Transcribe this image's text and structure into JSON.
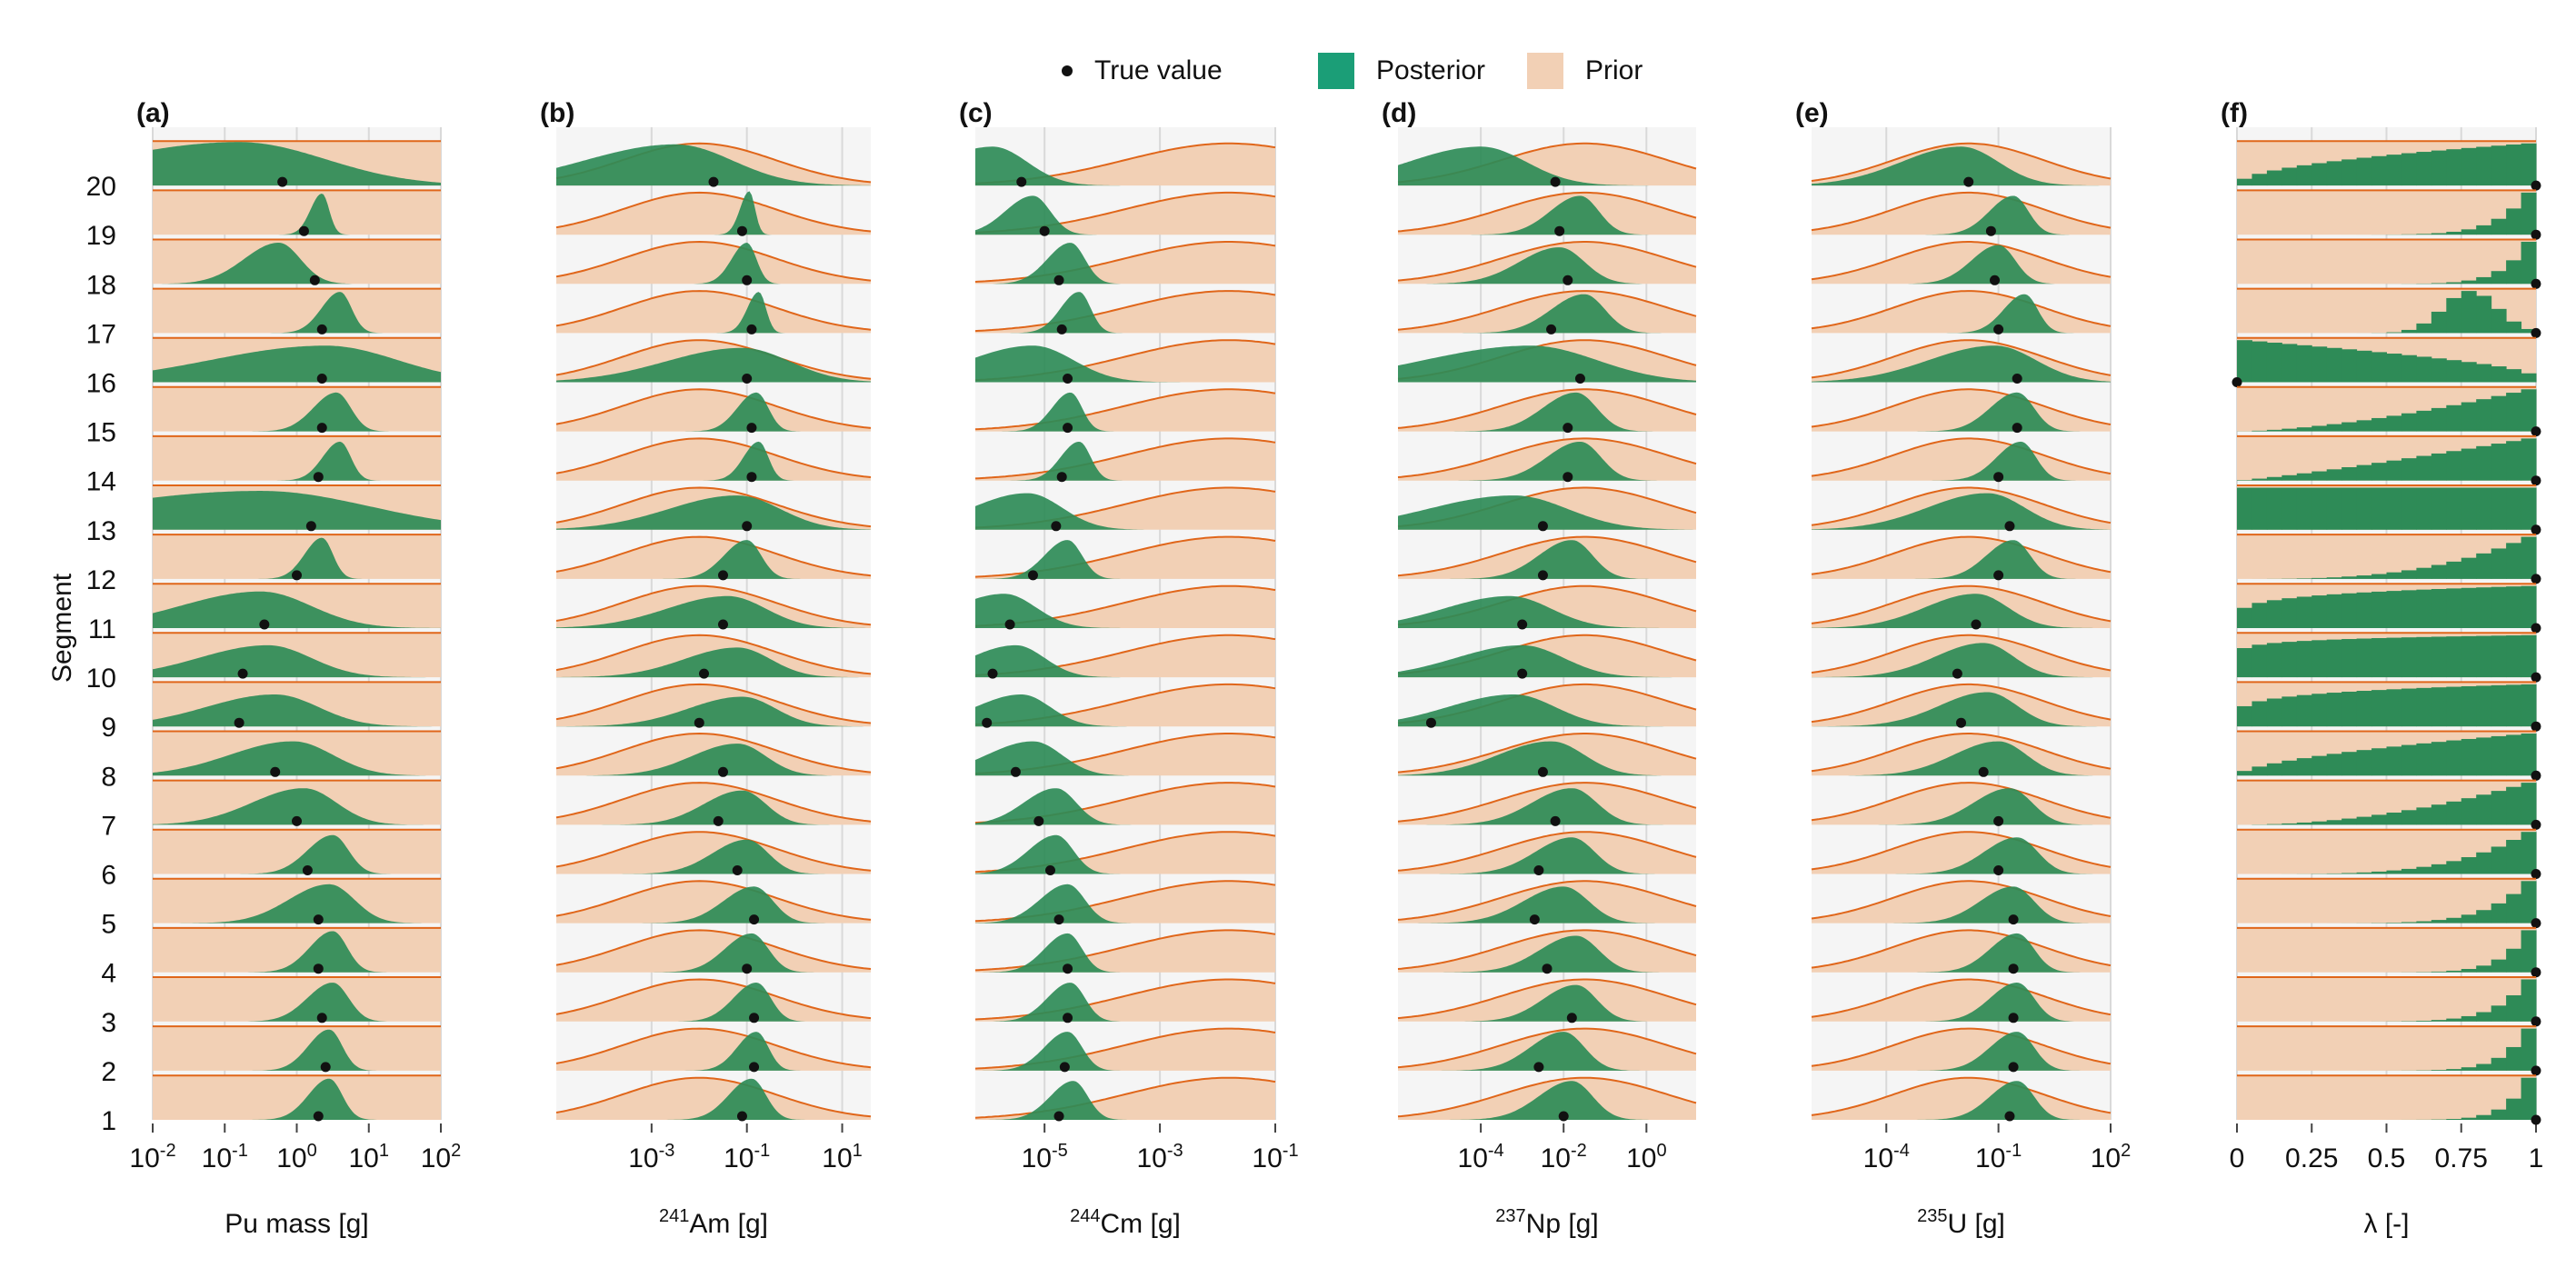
{
  "legend": {
    "true_value": "True value",
    "posterior": "Posterior",
    "prior": "Prior"
  },
  "colors": {
    "posterior_fill": "#2e8b57",
    "posterior_fill_alt": "#1b9e77",
    "prior_fill": "#f2d0b5",
    "prior_line": "#e0661a",
    "panel_bg": "#f5f5f5",
    "grid": "#d9d9d9",
    "true_dot": "#111111"
  },
  "y_axis": {
    "label": "Segment",
    "segments": [
      "1",
      "2",
      "3",
      "4",
      "5",
      "6",
      "7",
      "8",
      "9",
      "10",
      "11",
      "12",
      "13",
      "14",
      "15",
      "16",
      "17",
      "18",
      "19",
      "20"
    ]
  },
  "chart_data": [
    {
      "type": "ridgeline",
      "panel": "(a)",
      "xlabel": "Pu mass [g]",
      "xscale": "log",
      "xlim_log10": [
        -2,
        2
      ],
      "ticks": [
        {
          "b": "10",
          "e": "-2",
          "v": -2
        },
        {
          "b": "10",
          "e": "-1",
          "v": -1
        },
        {
          "b": "10",
          "e": "0",
          "v": 0
        },
        {
          "b": "10",
          "e": "1",
          "v": 1
        },
        {
          "b": "10",
          "e": "2",
          "v": 2
        }
      ],
      "prior": {
        "shape": "uniform"
      },
      "true_log10": [
        0.3,
        0.4,
        0.35,
        0.3,
        0.3,
        0.15,
        0.0,
        -0.3,
        -0.8,
        -0.75,
        -0.45,
        0.0,
        0.2,
        0.3,
        0.35,
        0.35,
        0.35,
        0.25,
        0.1,
        -0.2
      ],
      "post_mode_log10": [
        0.45,
        0.45,
        0.5,
        0.5,
        0.45,
        0.5,
        0.1,
        -0.05,
        -0.3,
        -0.4,
        -0.5,
        0.35,
        -0.5,
        0.6,
        0.55,
        0.4,
        0.6,
        -0.25,
        0.35,
        -0.8
      ],
      "post_width": [
        0.18,
        0.18,
        0.22,
        0.2,
        0.35,
        0.22,
        0.45,
        0.55,
        0.6,
        0.6,
        0.7,
        0.15,
        1.5,
        0.15,
        0.2,
        1.0,
        0.16,
        0.3,
        0.1,
        1.2
      ],
      "post_height": [
        0.9,
        0.9,
        0.85,
        0.9,
        0.85,
        0.85,
        0.8,
        0.75,
        0.7,
        0.7,
        0.8,
        0.9,
        0.85,
        0.85,
        0.85,
        0.8,
        0.9,
        0.9,
        0.9,
        0.95
      ]
    },
    {
      "type": "ridgeline",
      "panel": "(b)",
      "xlabel": "Am [g]",
      "xlabel_sup": "241",
      "xscale": "log",
      "xlim_log10": [
        -5.0,
        1.6
      ],
      "ticks": [
        {
          "b": "10",
          "e": "-3",
          "v": -3
        },
        {
          "b": "10",
          "e": "-1",
          "v": -1
        },
        {
          "b": "10",
          "e": "1",
          "v": 1
        }
      ],
      "prior": {
        "shape": "lognormal",
        "mode_log10": -2.0,
        "width": 1.6
      },
      "true_log10": [
        -1.1,
        -0.85,
        -0.85,
        -1.0,
        -0.85,
        -1.2,
        -1.6,
        -1.5,
        -2.0,
        -1.9,
        -1.5,
        -1.5,
        -1.0,
        -0.9,
        -0.9,
        -1.0,
        -0.9,
        -1.0,
        -1.1,
        -1.7
      ],
      "post_mode_log10": [
        -0.9,
        -0.8,
        -0.8,
        -0.9,
        -0.85,
        -1.0,
        -1.1,
        -1.2,
        -1.1,
        -1.2,
        -1.4,
        -1.0,
        -1.2,
        -0.75,
        -0.8,
        -1.1,
        -0.75,
        -1.0,
        -0.95,
        -2.5
      ],
      "post_width": [
        0.3,
        0.25,
        0.3,
        0.35,
        0.4,
        0.45,
        0.5,
        0.6,
        0.7,
        0.7,
        0.8,
        0.3,
        0.9,
        0.2,
        0.25,
        1.0,
        0.15,
        0.2,
        0.12,
        1.2
      ],
      "post_height": [
        0.9,
        0.85,
        0.85,
        0.85,
        0.8,
        0.75,
        0.75,
        0.7,
        0.65,
        0.65,
        0.7,
        0.85,
        0.75,
        0.85,
        0.85,
        0.75,
        0.9,
        0.9,
        0.95,
        0.9
      ]
    },
    {
      "type": "ridgeline",
      "panel": "(c)",
      "xlabel": "Cm [g]",
      "xlabel_sup": "244",
      "xscale": "log",
      "xlim_log10": [
        -6.2,
        -1.0
      ],
      "ticks": [
        {
          "b": "10",
          "e": "-5",
          "v": -5
        },
        {
          "b": "10",
          "e": "-3",
          "v": -3
        },
        {
          "b": "10",
          "e": "-1",
          "v": -1
        }
      ],
      "prior": {
        "shape": "lognormal",
        "mode_log10": -1.8,
        "width": 1.8
      },
      "true_log10": [
        -4.75,
        -4.65,
        -4.6,
        -4.6,
        -4.75,
        -4.9,
        -5.1,
        -5.5,
        -6.0,
        -5.9,
        -5.6,
        -5.2,
        -4.8,
        -4.7,
        -4.6,
        -4.6,
        -4.7,
        -4.75,
        -5.0,
        -5.4
      ],
      "post_mode_log10": [
        -4.5,
        -4.6,
        -4.55,
        -4.6,
        -4.6,
        -4.8,
        -4.8,
        -5.2,
        -5.4,
        -5.5,
        -5.7,
        -4.6,
        -5.3,
        -4.4,
        -4.55,
        -5.2,
        -4.4,
        -4.55,
        -5.2,
        -5.9
      ],
      "post_width": [
        0.25,
        0.25,
        0.25,
        0.25,
        0.3,
        0.3,
        0.35,
        0.5,
        0.5,
        0.5,
        0.55,
        0.25,
        0.6,
        0.2,
        0.2,
        0.7,
        0.2,
        0.25,
        0.3,
        0.6
      ],
      "post_height": [
        0.85,
        0.85,
        0.85,
        0.85,
        0.85,
        0.85,
        0.8,
        0.75,
        0.7,
        0.7,
        0.75,
        0.85,
        0.8,
        0.85,
        0.85,
        0.8,
        0.9,
        0.9,
        0.85,
        0.85
      ]
    },
    {
      "type": "ridgeline",
      "panel": "(d)",
      "xlabel": "Np [g]",
      "xlabel_sup": "237",
      "xscale": "log",
      "xlim_log10": [
        -6.0,
        1.2
      ],
      "ticks": [
        {
          "b": "10",
          "e": "-4",
          "v": -4
        },
        {
          "b": "10",
          "e": "-2",
          "v": -2
        },
        {
          "b": "10",
          "e": "0",
          "v": 0
        }
      ],
      "prior": {
        "shape": "lognormal",
        "mode_log10": -1.5,
        "width": 2.0
      },
      "true_log10": [
        -2.0,
        -2.6,
        -1.8,
        -2.4,
        -2.7,
        -2.6,
        -2.2,
        -2.5,
        -5.2,
        -3.0,
        -3.0,
        -2.5,
        -2.5,
        -1.9,
        -1.9,
        -1.6,
        -2.3,
        -1.9,
        -2.1,
        -2.2
      ],
      "post_mode_log10": [
        -1.8,
        -2.0,
        -1.7,
        -1.7,
        -2.0,
        -1.8,
        -1.8,
        -2.3,
        -3.2,
        -3.0,
        -3.3,
        -1.8,
        -3.2,
        -1.6,
        -1.7,
        -2.8,
        -1.5,
        -2.1,
        -1.6,
        -4.0
      ],
      "post_width": [
        0.5,
        0.5,
        0.5,
        0.55,
        0.6,
        0.55,
        0.6,
        0.8,
        1.0,
        1.0,
        1.0,
        0.5,
        1.3,
        0.5,
        0.5,
        1.6,
        0.5,
        0.6,
        0.45,
        1.1
      ],
      "post_height": [
        0.85,
        0.85,
        0.8,
        0.8,
        0.8,
        0.8,
        0.8,
        0.75,
        0.7,
        0.7,
        0.7,
        0.85,
        0.75,
        0.85,
        0.85,
        0.8,
        0.85,
        0.8,
        0.85,
        0.85
      ]
    },
    {
      "type": "ridgeline",
      "panel": "(e)",
      "xlabel": "U [g]",
      "xlabel_sup": "235",
      "xscale": "log",
      "xlim_log10": [
        -6.0,
        2.0
      ],
      "ticks": [
        {
          "b": "10",
          "e": "-4",
          "v": -4
        },
        {
          "b": "10",
          "e": "-1",
          "v": -1
        },
        {
          "b": "10",
          "e": "2",
          "v": 2
        }
      ],
      "prior": {
        "shape": "lognormal",
        "mode_log10": -1.8,
        "width": 2.0
      },
      "true_log10": [
        -0.7,
        -0.6,
        -0.6,
        -0.6,
        -0.6,
        -1.0,
        -1.0,
        -1.4,
        -2.0,
        -2.1,
        -1.6,
        -1.0,
        -0.7,
        -1.0,
        -0.5,
        -0.5,
        -1.0,
        -1.1,
        -1.2,
        -1.8
      ],
      "post_mode_log10": [
        -0.5,
        -0.5,
        -0.5,
        -0.5,
        -0.6,
        -0.5,
        -0.7,
        -1.0,
        -1.3,
        -1.4,
        -1.6,
        -0.6,
        -1.3,
        -0.4,
        -0.5,
        -1.1,
        -0.3,
        -1.0,
        -0.6,
        -2.0
      ],
      "post_width": [
        0.45,
        0.45,
        0.45,
        0.45,
        0.55,
        0.55,
        0.6,
        0.75,
        0.8,
        0.8,
        0.85,
        0.45,
        1.0,
        0.4,
        0.45,
        1.1,
        0.35,
        0.45,
        0.4,
        1.0
      ],
      "post_height": [
        0.85,
        0.85,
        0.85,
        0.85,
        0.8,
        0.8,
        0.8,
        0.75,
        0.75,
        0.75,
        0.75,
        0.85,
        0.8,
        0.85,
        0.85,
        0.8,
        0.85,
        0.85,
        0.85,
        0.85
      ]
    },
    {
      "type": "histogram",
      "panel": "(f)",
      "xlabel": "λ [-]",
      "xlim": [
        0,
        1
      ],
      "ticks": [
        {
          "t": "0",
          "v": 0
        },
        {
          "t": "0.25",
          "v": 0.25
        },
        {
          "t": "0.5",
          "v": 0.5
        },
        {
          "t": "0.75",
          "v": 0.75
        },
        {
          "t": "1",
          "v": 1
        }
      ],
      "prior": {
        "shape": "uniform"
      },
      "true_values": [
        1,
        1,
        1,
        1,
        1,
        1,
        1,
        1,
        1,
        1,
        1,
        1,
        1,
        1,
        1,
        0,
        1,
        1,
        1,
        1
      ],
      "hist_shape": [
        {
          "type": "power",
          "k": 14
        },
        {
          "type": "power",
          "k": 12
        },
        {
          "type": "power",
          "k": 10
        },
        {
          "type": "power",
          "k": 12
        },
        {
          "type": "power",
          "k": 8
        },
        {
          "type": "power",
          "k": 5
        },
        {
          "type": "power",
          "k": 3
        },
        {
          "type": "power",
          "k": 1.6
        },
        {
          "type": "power",
          "k": 1.2
        },
        {
          "type": "power",
          "k": 1.1
        },
        {
          "type": "power",
          "k": 1.2
        },
        {
          "type": "power",
          "k": 4
        },
        {
          "type": "power",
          "k": 1.0
        },
        {
          "type": "power",
          "k": 2.2
        },
        {
          "type": "power",
          "k": 2.6
        },
        {
          "type": "decreasing",
          "k": 1.3
        },
        {
          "type": "peak",
          "m": 0.78,
          "s": 0.09
        },
        {
          "type": "power",
          "k": 12
        },
        {
          "type": "power",
          "k": 10
        },
        {
          "type": "power",
          "k": 1.5
        }
      ]
    }
  ]
}
